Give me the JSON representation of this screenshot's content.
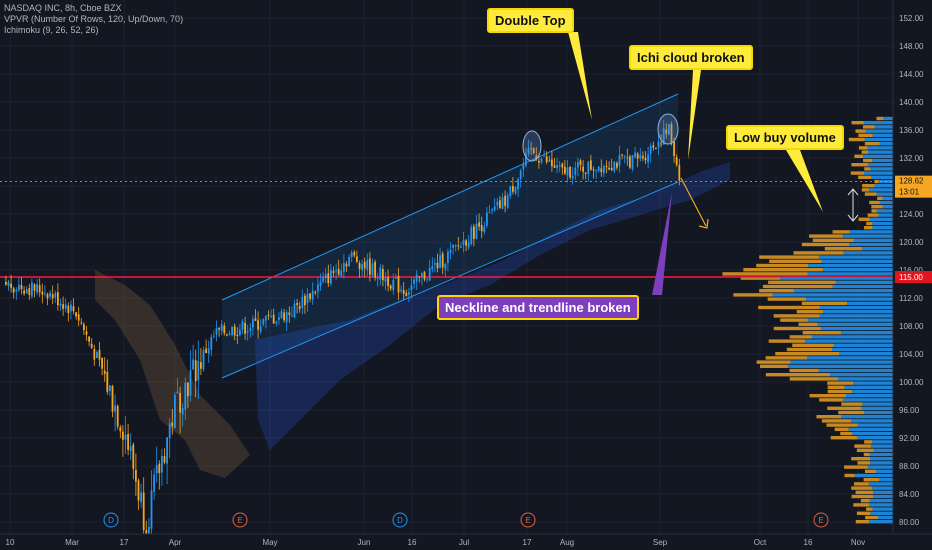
{
  "legend": {
    "symbol_line": "NASDAQ INC, 8h, Cboe BZX",
    "vpvr_line": "VPVR (Number Of Rows, 120, Up/Down, 70)",
    "ichimoku_line": "Ichimoku (9, 26, 52, 26)"
  },
  "annotations": {
    "double_top": "Double Top",
    "ichi_cloud": "Ichi cloud broken",
    "low_volume": "Low buy volume",
    "neckline": "Neckline and trendline broken"
  },
  "price_badges": {
    "last_price": "128.62",
    "countdown": "13:01",
    "neckline_price": "115.00"
  },
  "events": [
    "D",
    "E",
    "D",
    "E",
    "E"
  ],
  "colors": {
    "background": "#131722",
    "up_candle": "#2196f3",
    "down_candle": "#f5a623",
    "neckline": "#ff1744",
    "channel": "#2196f3",
    "badge_orange": "#f5a623",
    "badge_red": "#e0151d"
  },
  "chart_data": {
    "type": "candlestick",
    "x_ticks": [
      "10",
      "Mar",
      "17",
      "Apr",
      "May",
      "Jun",
      "16",
      "Jul",
      "17",
      "Aug",
      "Sep",
      "Oct",
      "16",
      "Nov"
    ],
    "y_ticks": [
      "152.00",
      "148.00",
      "144.00",
      "140.00",
      "136.00",
      "132.00",
      "128.00",
      "124.00",
      "120.00",
      "116.00",
      "112.00",
      "108.00",
      "104.00",
      "100.00",
      "96.00",
      "92.00",
      "88.00",
      "84.00",
      "80.00"
    ],
    "ylim": [
      79,
      153
    ],
    "price_series": [
      {
        "date": "Feb 10",
        "close": 114
      },
      {
        "date": "Feb 25",
        "close": 113
      },
      {
        "date": "Mar 5",
        "close": 110
      },
      {
        "date": "Mar 12",
        "close": 102
      },
      {
        "date": "Mar 17",
        "close": 93
      },
      {
        "date": "Mar 23",
        "close": 80
      },
      {
        "date": "Apr 3",
        "close": 97
      },
      {
        "date": "Apr 17",
        "close": 107
      },
      {
        "date": "May 1",
        "close": 108
      },
      {
        "date": "May 15",
        "close": 110
      },
      {
        "date": "Jun 1",
        "close": 118
      },
      {
        "date": "Jun 15",
        "close": 113
      },
      {
        "date": "Jul 1",
        "close": 119
      },
      {
        "date": "Jul 15",
        "close": 126
      },
      {
        "date": "Jul 24",
        "close": 133
      },
      {
        "date": "Aug 1",
        "close": 130
      },
      {
        "date": "Aug 15",
        "close": 131
      },
      {
        "date": "Aug 28",
        "close": 132
      },
      {
        "date": "Sep 2",
        "close": 136
      },
      {
        "date": "Sep 7",
        "close": 128.62
      }
    ],
    "neckline_level": 115.0,
    "last_price": 128.62,
    "double_top_peaks": [
      134.5,
      137.0
    ]
  }
}
